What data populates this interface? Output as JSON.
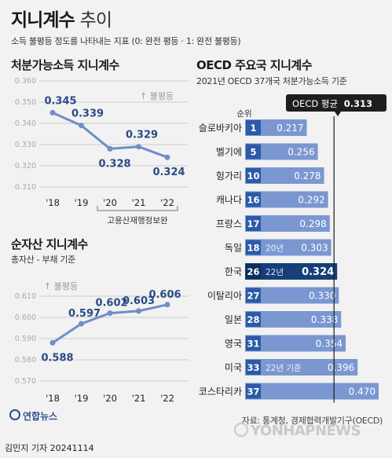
{
  "header": {
    "title_main": "지니계수",
    "title_light": "추이",
    "subtitle": "소득 불평등 정도를 나타내는 지표 (0: 완전 평등 · 1: 완전 불평등)"
  },
  "left_top": {
    "title": "처분가능소득 지니계수",
    "arrow_label": "↑ 불평등",
    "source_note": "고용산재행정보완"
  },
  "left_bottom": {
    "title": "순자산 지니계수",
    "subtitle": "총자산 - 부채 기준",
    "arrow_label": "↑ 불평등"
  },
  "right": {
    "title": "OECD 주요국 지니계수",
    "subtitle": "2021년 OECD 37개국 처분가능소득 기준",
    "rank_header": "순위",
    "avg_label": "OECD 평균",
    "avg_value_text": "0.313"
  },
  "footer": {
    "source": "자료: 통계청, 경제협력개발기구(OECD)",
    "logo": "연합뉴스",
    "watermark": "YONHAPNEWS",
    "byline": "김민지 기자  20241114"
  },
  "colors": {
    "line": "#6f8dc9",
    "bar": "#7b97d1",
    "bar_highlight": "#163e78",
    "rank_box": "#2c5aa8",
    "avg_box": "#1e1e1e",
    "value_text": "#2a4a86"
  },
  "chart_data": [
    {
      "type": "line",
      "title": "처분가능소득 지니계수",
      "categories": [
        "'18",
        "'19",
        "'20",
        "'21",
        "'22"
      ],
      "series": [
        {
          "values": [
            0.345,
            0.339,
            0.328,
            0.329,
            0.324
          ]
        }
      ],
      "value_labels": [
        "0.345",
        "0.339",
        "0.328",
        "0.329",
        "0.324"
      ],
      "ylim": [
        0.31,
        0.36
      ],
      "yticks": [
        0.31,
        0.32,
        0.33,
        0.34,
        0.35,
        0.36
      ],
      "ytick_labels": [
        "0.310",
        "0.320",
        "0.330",
        "0.340",
        "0.350",
        "0.360"
      ],
      "grid": true
    },
    {
      "type": "line",
      "title": "순자산 지니계수",
      "categories": [
        "'18",
        "'19",
        "'20",
        "'21",
        "'22"
      ],
      "series": [
        {
          "values": [
            0.588,
            0.597,
            0.602,
            0.603,
            0.606
          ]
        }
      ],
      "value_labels": [
        "0.588",
        "0.597",
        "0.602",
        "0.603",
        "0.606"
      ],
      "ylim": [
        0.57,
        0.61
      ],
      "yticks": [
        0.57,
        0.58,
        0.59,
        0.6,
        0.61
      ],
      "ytick_labels": [
        "0.570",
        "0.580",
        "0.590",
        "0.600",
        "0.610"
      ],
      "grid": true
    },
    {
      "type": "bar",
      "orientation": "horizontal",
      "title": "OECD 주요국 지니계수",
      "categories": [
        "슬로바키아",
        "벨기에",
        "헝가리",
        "캐나다",
        "프랑스",
        "독일",
        "한국",
        "이탈리아",
        "일본",
        "영국",
        "미국",
        "코스타리카"
      ],
      "ranks": [
        "1",
        "5",
        "10",
        "16",
        "17",
        "18",
        "26",
        "27",
        "28",
        "31",
        "33",
        "37"
      ],
      "values": [
        0.217,
        0.256,
        0.278,
        0.292,
        0.298,
        0.303,
        0.324,
        0.33,
        0.338,
        0.354,
        0.396,
        0.47
      ],
      "value_labels": [
        "0.217",
        "0.256",
        "0.278",
        "0.292",
        "0.298",
        "0.303",
        "0.324",
        "0.330",
        "0.338",
        "0.354",
        "0.396",
        "0.470"
      ],
      "notes": [
        "",
        "",
        "",
        "",
        "",
        "20년",
        "22년",
        "",
        "",
        "",
        "22년 기준",
        ""
      ],
      "highlight_index": 6,
      "reference_line": {
        "label": "OECD 평균",
        "value": 0.313
      }
    }
  ]
}
